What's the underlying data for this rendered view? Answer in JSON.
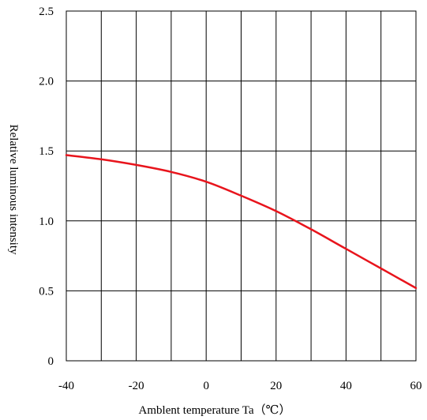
{
  "chart_data": {
    "type": "line",
    "title": "",
    "xlabel": "Amblent temperature Ta（℃）",
    "ylabel": "Relative luminous intensity",
    "xlim": [
      -40,
      60
    ],
    "ylim": [
      0,
      2.5
    ],
    "x_ticks": [
      -40,
      -20,
      0,
      20,
      40,
      60
    ],
    "x_tick_labels": [
      "-40",
      "-20",
      "0",
      "20",
      "40",
      "60"
    ],
    "y_ticks": [
      0,
      0.5,
      1.0,
      1.5,
      2.0,
      2.5
    ],
    "y_tick_labels": [
      "0",
      "0.5",
      "1.0",
      "1.5",
      "2.0",
      "2.5"
    ],
    "grid": true,
    "grid_x_step": 10,
    "grid_y_step": 0.5,
    "series": [
      {
        "color": "#e8141c",
        "x": [
          -40,
          -30,
          -20,
          -10,
          0,
          10,
          20,
          30,
          40,
          50,
          60
        ],
        "y": [
          1.47,
          1.44,
          1.4,
          1.35,
          1.28,
          1.18,
          1.07,
          0.94,
          0.8,
          0.66,
          0.52
        ]
      }
    ]
  }
}
